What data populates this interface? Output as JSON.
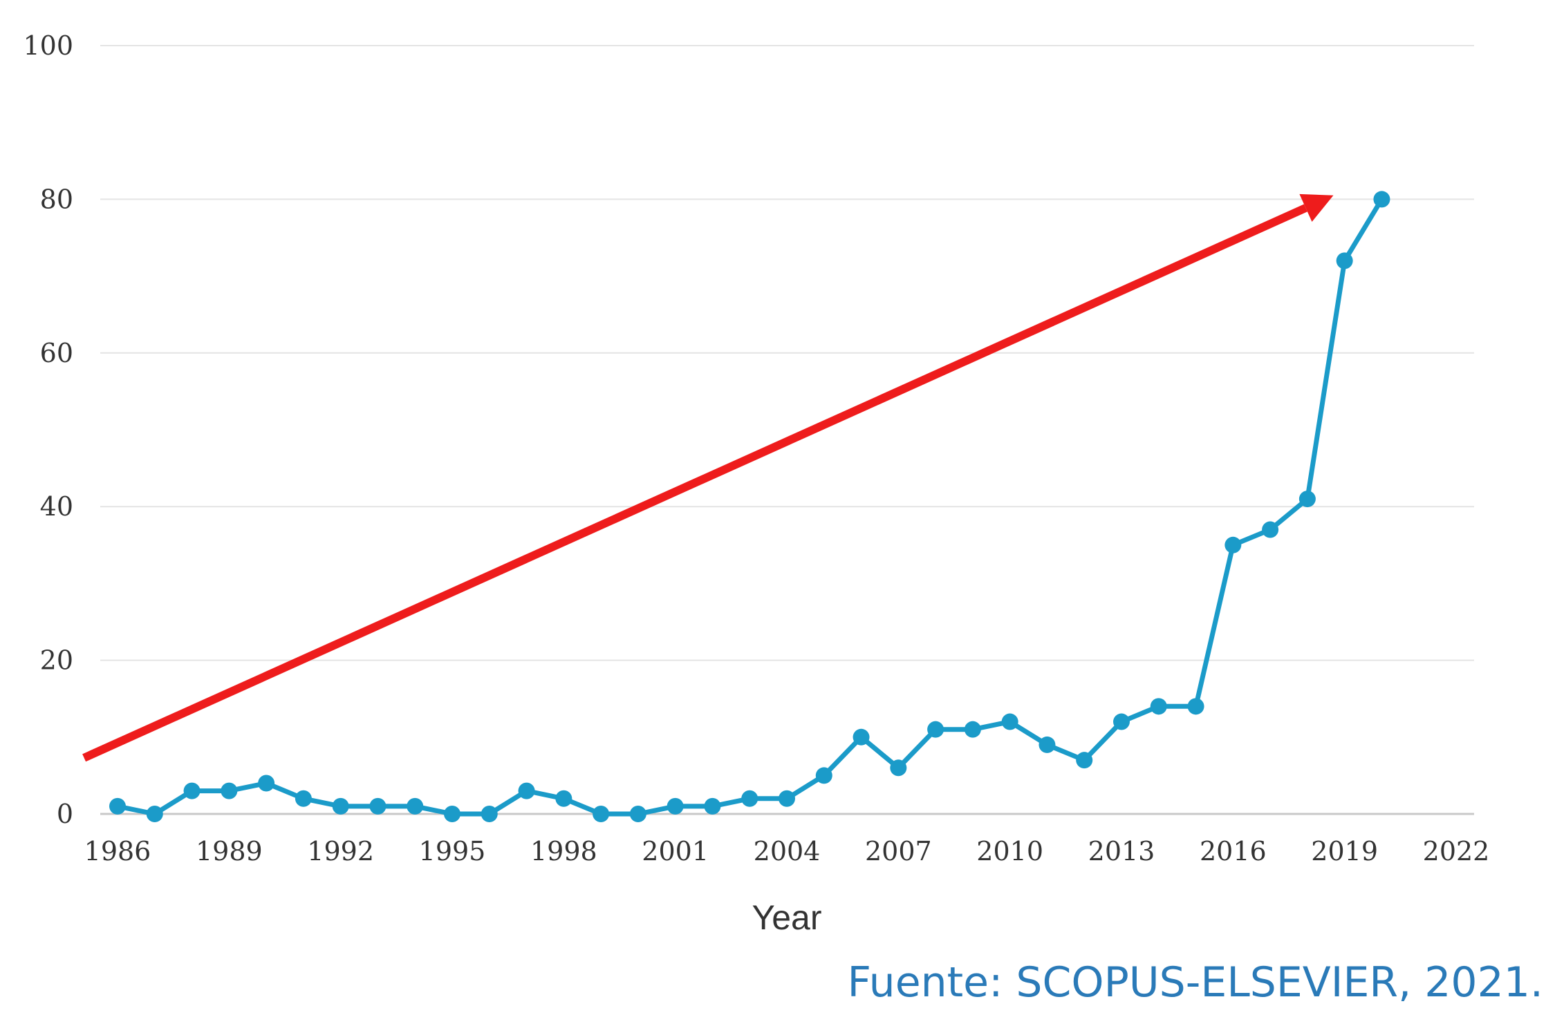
{
  "source_note": "Fuente: SCOPUS-ELSEVIER, 2021.",
  "colors": {
    "line": "#1b9bc9",
    "arrow": "#ee1c1c",
    "grid": "#e4e4e4",
    "baseline": "#c8c8c8",
    "source_text": "#2a7ab8"
  },
  "chart_data": {
    "type": "line",
    "title": "",
    "xlabel": "Year",
    "ylabel": "",
    "xlim": [
      1986,
      2022
    ],
    "ylim": [
      0,
      100
    ],
    "x_ticks": [
      1986,
      1989,
      1992,
      1995,
      1998,
      2001,
      2004,
      2007,
      2010,
      2013,
      2016,
      2019,
      2022
    ],
    "y_ticks": [
      0,
      20,
      40,
      60,
      80,
      100
    ],
    "grid": true,
    "series": [
      {
        "x": [
          1986,
          1987,
          1988,
          1989,
          1990,
          1991,
          1992,
          1993,
          1994,
          1995,
          1996,
          1997,
          1998,
          1999,
          2000,
          2001,
          2002,
          2003,
          2004,
          2005,
          2006,
          2007,
          2008,
          2009,
          2010,
          2011,
          2012,
          2013,
          2014,
          2015,
          2016,
          2017,
          2018,
          2019,
          2020
        ],
        "y": [
          1,
          0,
          3,
          3,
          4,
          2,
          1,
          1,
          1,
          0,
          0,
          3,
          2,
          0,
          0,
          1,
          1,
          2,
          2,
          5,
          10,
          6,
          11,
          11,
          12,
          9,
          7,
          12,
          14,
          14,
          35,
          37,
          41,
          72,
          80
        ]
      }
    ],
    "annotations": [
      {
        "type": "trend-arrow",
        "from": {
          "x": 1985.1,
          "y": 7.3
        },
        "to": {
          "x": 2018.7,
          "y": 80.5
        }
      }
    ]
  }
}
